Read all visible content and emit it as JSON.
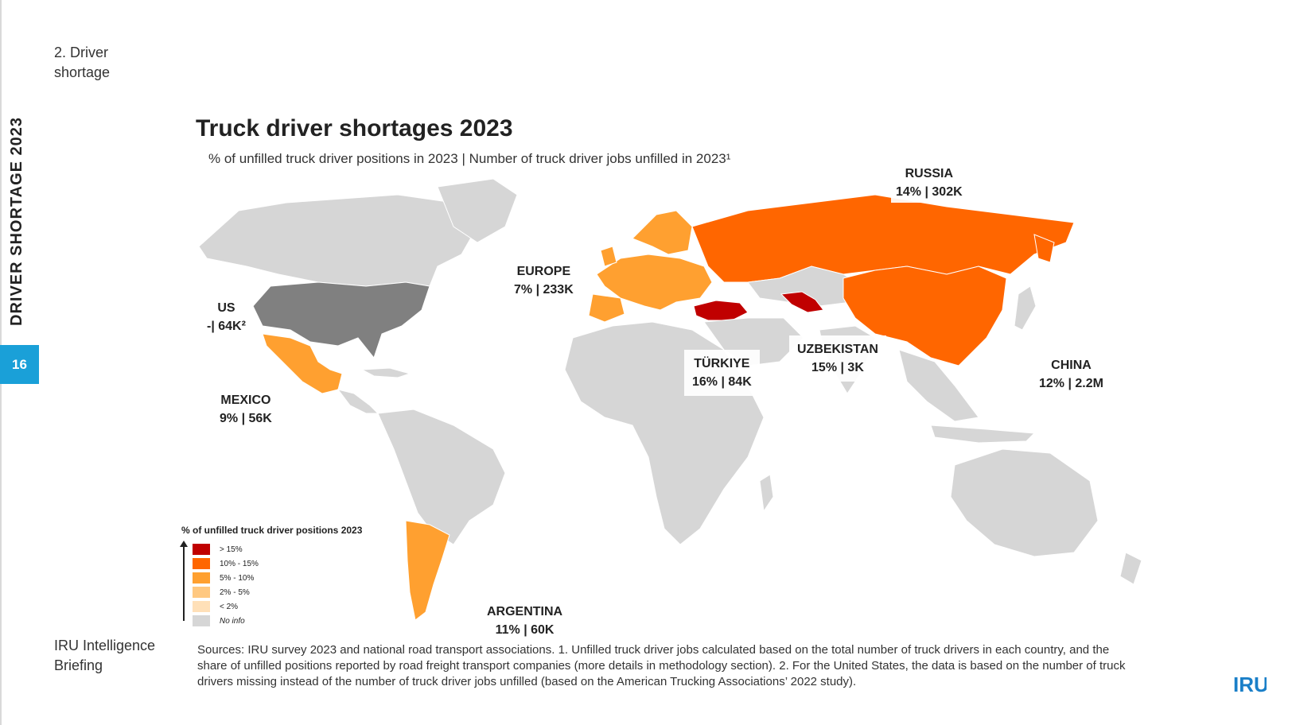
{
  "sidebar": {
    "section_label": "2. Driver shortage",
    "vertical_title": "DRIVER SHORTAGE 2023",
    "page_number": "16",
    "brand_text": "IRU Intelligence Briefing"
  },
  "header": {
    "title": "Truck driver shortages 2023",
    "subtitle": "% of unfilled truck driver positions in 2023 | Number of truck driver jobs unfilled in 2023¹"
  },
  "map": {
    "colors": {
      "gt15": "#c00000",
      "10to15": "#ff6600",
      "5to10": "#ffa030",
      "2to5": "#ffc880",
      "lt2": "#ffe0b8",
      "noinfo": "#d6d6d6",
      "us": "#808080"
    },
    "labels": {
      "russia": {
        "name": "RUSSIA",
        "vals": "14% | 302K"
      },
      "europe": {
        "name": "EUROPE",
        "vals": "7% | 233K"
      },
      "us": {
        "name": "US",
        "vals": "-| 64K²"
      },
      "mexico": {
        "name": "MEXICO",
        "vals": "9% | 56K"
      },
      "turkiye": {
        "name": "TÜRKIYE",
        "vals": "16% | 84K"
      },
      "uzbekistan": {
        "name": "UZBEKISTAN",
        "vals": "15% | 3K"
      },
      "china": {
        "name": "CHINA",
        "vals": "12% | 2.2M"
      },
      "argentina": {
        "name": "ARGENTINA",
        "vals": "11% | 60K"
      }
    }
  },
  "legend": {
    "title": "% of unfilled truck driver positions 2023",
    "items": [
      {
        "label": "> 15%",
        "color": "#c00000"
      },
      {
        "label": "10% - 15%",
        "color": "#ff6600"
      },
      {
        "label": "5% - 10%",
        "color": "#ffa030"
      },
      {
        "label": "2% - 5%",
        "color": "#ffc880"
      },
      {
        "label": "< 2%",
        "color": "#ffe0b8"
      },
      {
        "label": "No info",
        "color": "#d6d6d6"
      }
    ]
  },
  "sources": "Sources: IRU survey 2023 and national road transport associations. 1. Unfilled truck driver jobs calculated based on the total number of truck drivers in each country, and the share of unfilled positions reported by road freight transport companies (more details in methodology section). 2. For the United States, the data is based on the number of truck drivers missing instead of the number of truck driver jobs unfilled (based on the American Trucking Associations’ 2022 study).",
  "logo": {
    "text": "IRU",
    "color": "#1a7fc8"
  }
}
